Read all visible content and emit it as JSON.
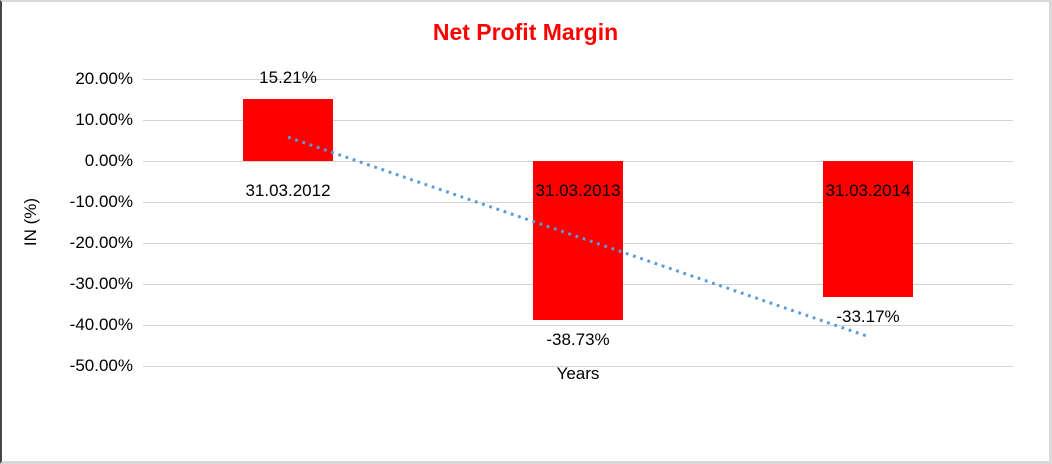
{
  "frame": {
    "background": "#ffffff",
    "border_color": "#d9d9d9",
    "left_border_color": "#474747"
  },
  "chart_data": {
    "type": "bar",
    "title": "Net Profit Margin",
    "title_color": "#ff0000",
    "xlabel": "Years",
    "ylabel": "IN (%)",
    "categories": [
      "31.03.2012",
      "31.03.2013",
      "31.03.2014"
    ],
    "values": [
      15.21,
      -38.73,
      -33.17
    ],
    "value_labels": [
      "15.21%",
      "-38.73%",
      "-33.17%"
    ],
    "ylim": [
      -50,
      20
    ],
    "ytick_step": 10,
    "ytick_labels": [
      "20.00%",
      "10.00%",
      "0.00%",
      "-10.00%",
      "-20.00%",
      "-30.00%",
      "-40.00%",
      "-50.00%"
    ],
    "bar_color": "#ff0000",
    "gridline_color": "#d3d3d3",
    "text_color": "#000000",
    "grid": true,
    "legend": "none",
    "trendline": {
      "type": "linear",
      "style": "dotted",
      "color": "#5b9bd5",
      "start_value": 5.8,
      "end_value": -42.8
    }
  }
}
